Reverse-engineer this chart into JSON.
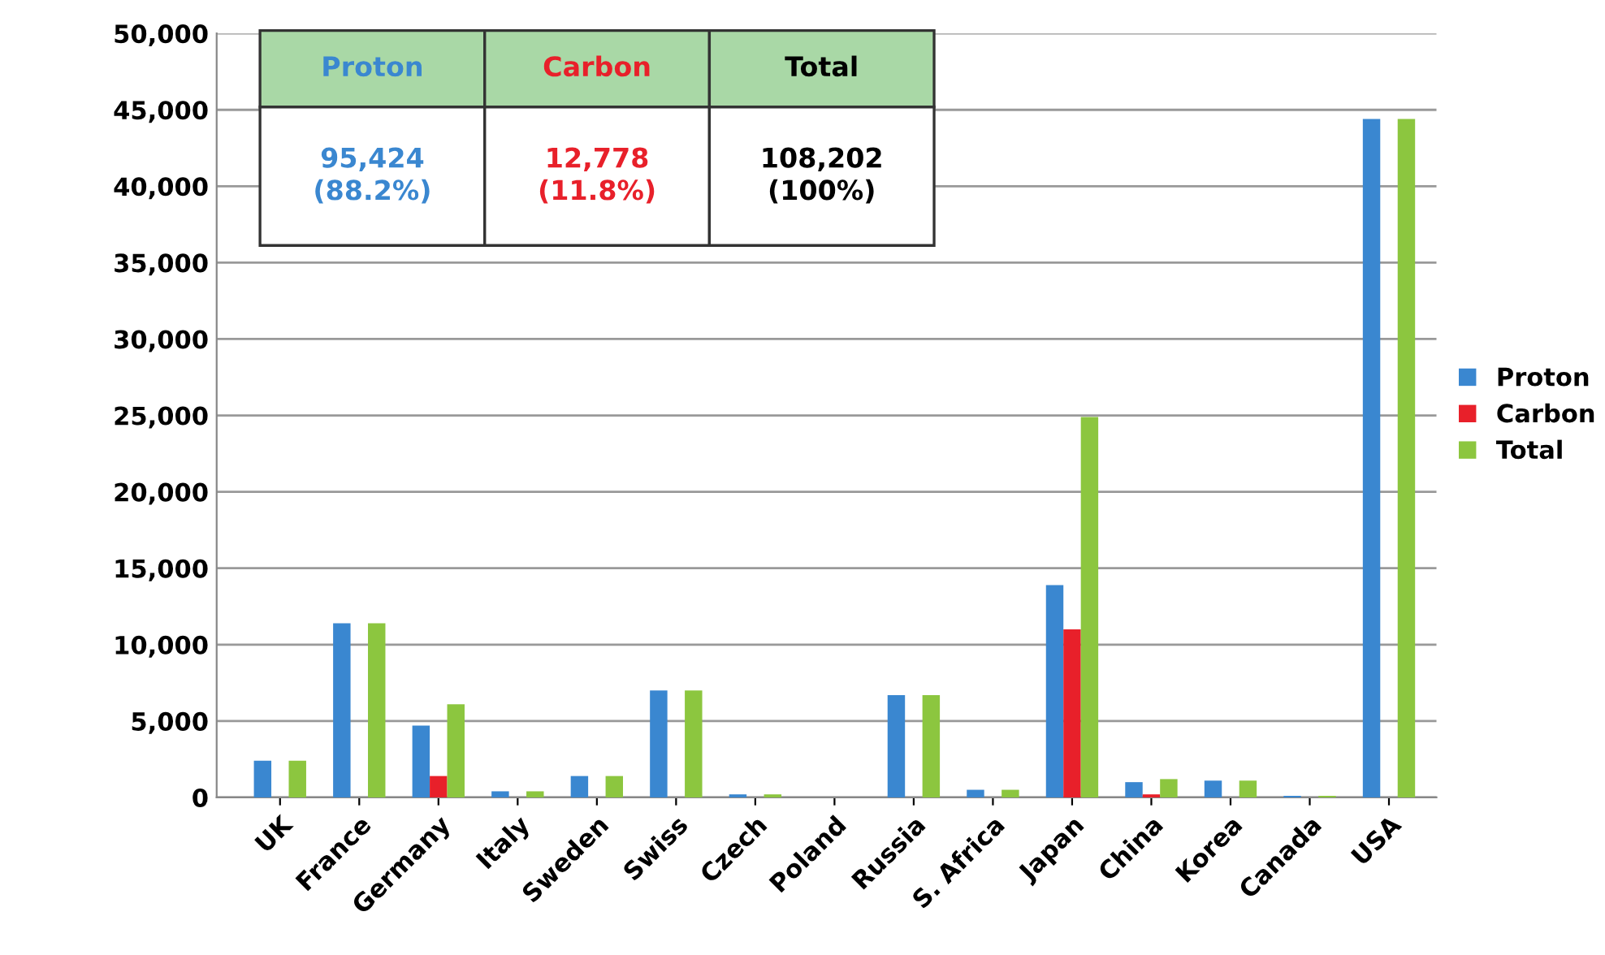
{
  "chart_data": {
    "type": "bar",
    "categories": [
      "UK",
      "France",
      "Germany",
      "Italy",
      "Sweden",
      "Swiss",
      "Czech",
      "Poland",
      "Russia",
      "S. Africa",
      "Japan",
      "China",
      "Korea",
      "Canada",
      "USA"
    ],
    "series": [
      {
        "name": "Proton",
        "color": "#3a87d0",
        "values": [
          2400,
          11400,
          4700,
          400,
          1400,
          7000,
          200,
          0,
          6700,
          500,
          13900,
          1000,
          1100,
          100,
          44400
        ]
      },
      {
        "name": "Carbon",
        "color": "#e8202a",
        "values": [
          0,
          0,
          1400,
          0,
          0,
          0,
          0,
          0,
          0,
          0,
          11000,
          200,
          0,
          0,
          0
        ]
      },
      {
        "name": "Total",
        "color": "#8cc63f",
        "values": [
          2400,
          11400,
          6100,
          400,
          1400,
          7000,
          200,
          0,
          6700,
          500,
          24900,
          1200,
          1100,
          100,
          44400
        ]
      }
    ],
    "ylim": [
      0,
      50000
    ],
    "yticks": [
      {
        "value": 0,
        "label": "0"
      },
      {
        "value": 5000,
        "label": "5,000"
      },
      {
        "value": 10000,
        "label": "10,000"
      },
      {
        "value": 15000,
        "label": "15,000"
      },
      {
        "value": 20000,
        "label": "20,000"
      },
      {
        "value": 25000,
        "label": "25,000"
      },
      {
        "value": 30000,
        "label": "30,000"
      },
      {
        "value": 35000,
        "label": "35,000"
      },
      {
        "value": 40000,
        "label": "40,000"
      },
      {
        "value": 45000,
        "label": "45,000"
      },
      {
        "value": 50000,
        "label": "50,000"
      }
    ],
    "grid": "y",
    "legend": "right",
    "annotations": [
      "Proton",
      "Carbon",
      "Total",
      "95,424\n(88.2%)",
      "12,778\n(11.8%)",
      "108,202\n(100%)"
    ]
  }
}
